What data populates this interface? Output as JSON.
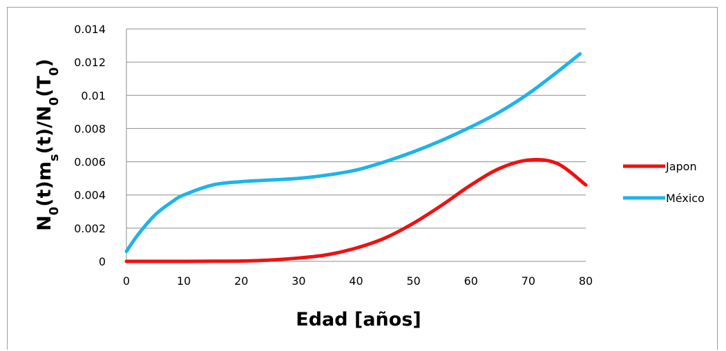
{
  "chart_data": {
    "type": "line",
    "title": "",
    "xlabel": "Edad [años]",
    "ylabel": {
      "parts": [
        {
          "text": "N",
          "sub": false
        },
        {
          "text": "0",
          "sub": true
        },
        {
          "text": "(t)m",
          "sub": false
        },
        {
          "text": "s",
          "sub": true
        },
        {
          "text": "(t)/N",
          "sub": false
        },
        {
          "text": "0",
          "sub": true
        },
        {
          "text": "(T",
          "sub": false
        },
        {
          "text": "0",
          "sub": true
        },
        {
          "text": ")",
          "sub": false
        }
      ]
    },
    "xlim": [
      0,
      80
    ],
    "ylim": [
      0,
      0.014
    ],
    "x_ticks": [
      0,
      10,
      20,
      30,
      40,
      50,
      60,
      70,
      80
    ],
    "x_tick_labels": [
      "0",
      "10",
      "20",
      "30",
      "40",
      "50",
      "60",
      "70",
      "80"
    ],
    "y_ticks": [
      0,
      0.002,
      0.004,
      0.006,
      0.008,
      0.01,
      0.012,
      0.014
    ],
    "y_tick_labels": [
      "0",
      "0.002",
      "0.004",
      "0.006",
      "0.008",
      "0.01",
      "0.012",
      "0.014"
    ],
    "grid": "horizontal",
    "legend_position": "right",
    "series": [
      {
        "name": "Japon",
        "color": "#ee1111",
        "x": [
          0,
          5,
          10,
          15,
          20,
          25,
          30,
          35,
          40,
          45,
          50,
          55,
          60,
          65,
          70,
          75,
          80
        ],
        "y": [
          0,
          0,
          0,
          1e-05,
          2e-05,
          8e-05,
          0.0002,
          0.0004,
          0.0008,
          0.0014,
          0.0023,
          0.0034,
          0.0046,
          0.0056,
          0.0061,
          0.0059,
          0.0046
        ]
      },
      {
        "name": "México",
        "color": "#1eb4e6",
        "x": [
          0,
          2,
          5,
          8,
          10,
          15,
          20,
          25,
          30,
          35,
          40,
          45,
          50,
          55,
          60,
          65,
          70,
          75,
          79
        ],
        "y": [
          0.0006,
          0.0016,
          0.0028,
          0.0036,
          0.004,
          0.0046,
          0.0048,
          0.0049,
          0.005,
          0.0052,
          0.0055,
          0.006,
          0.0066,
          0.0073,
          0.0081,
          0.009,
          0.0101,
          0.0114,
          0.0125
        ]
      }
    ]
  }
}
